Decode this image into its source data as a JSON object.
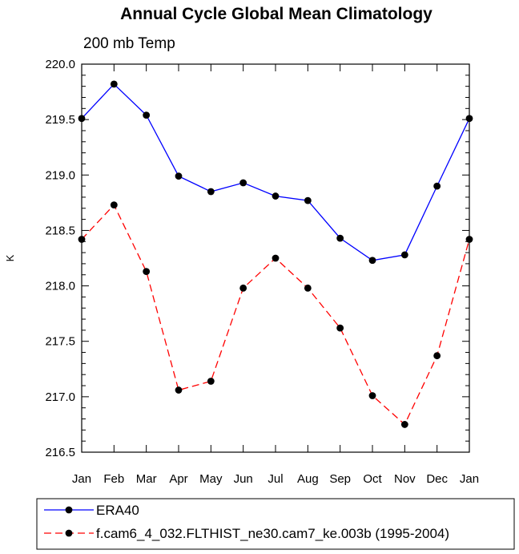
{
  "chart_data": {
    "type": "line",
    "title": "Annual Cycle Global Mean Climatology",
    "subtitle": "200 mb Temp",
    "xlabel": "",
    "ylabel": "K",
    "categories": [
      "Jan",
      "Feb",
      "Mar",
      "Apr",
      "May",
      "Jun",
      "Jul",
      "Aug",
      "Sep",
      "Oct",
      "Nov",
      "Dec",
      "Jan"
    ],
    "ylim": [
      216.5,
      220.0
    ],
    "yticks": [
      "216.5",
      "217.0",
      "217.5",
      "218.0",
      "218.5",
      "219.0",
      "219.5",
      "220.0"
    ],
    "grid": false,
    "legend_position": "bottom",
    "series": [
      {
        "name": "ERA40",
        "color": "#0000ff",
        "line_style": "solid",
        "values": [
          219.51,
          219.82,
          219.54,
          218.99,
          218.85,
          218.93,
          218.81,
          218.77,
          218.43,
          218.23,
          218.28,
          218.9,
          219.51
        ]
      },
      {
        "name": "f.cam6_4_032.FLTHIST_ne30.cam7_ke.003b (1995-2004)",
        "color": "#ff0000",
        "line_style": "dashed",
        "values": [
          218.42,
          218.73,
          218.13,
          217.06,
          217.14,
          217.98,
          218.25,
          217.98,
          217.62,
          217.01,
          216.75,
          217.37,
          218.42
        ]
      }
    ]
  }
}
